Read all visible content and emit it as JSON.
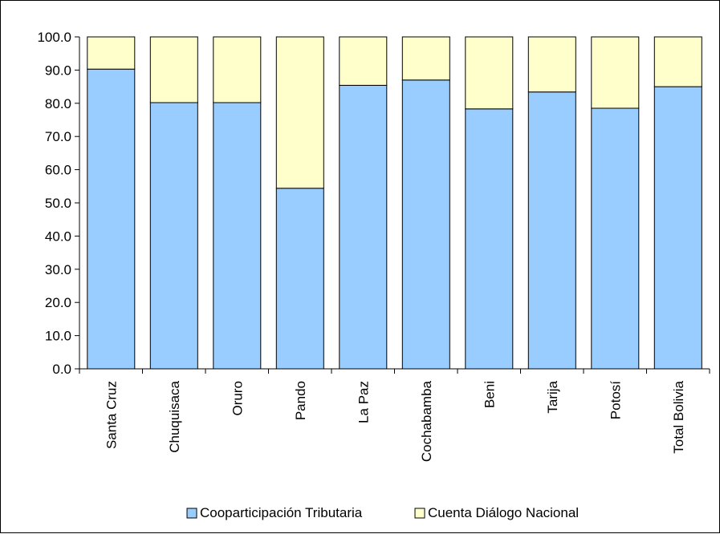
{
  "chart_data": {
    "type": "bar",
    "stacked": true,
    "title": "",
    "xlabel": "",
    "ylabel": "",
    "categories": [
      "Santa Cruz",
      "Chuquisaca",
      "Oruro",
      "Pando",
      "La Paz",
      "Cochabamba",
      "Beni",
      "Tarija",
      "Potosí",
      "Total Bolivia"
    ],
    "series": [
      {
        "name": "Cooparticipación Tributaria",
        "color": "#99ccff",
        "values": [
          90.3,
          80.2,
          80.2,
          54.4,
          85.4,
          87.0,
          78.3,
          83.4,
          78.5,
          85.0
        ]
      },
      {
        "name": "Cuenta Diálogo Nacional",
        "color": "#ffffcc",
        "values": [
          9.7,
          19.8,
          19.8,
          45.6,
          14.6,
          13.0,
          21.7,
          16.6,
          21.5,
          15.0
        ]
      }
    ],
    "ylim": [
      0,
      100
    ],
    "yticks": [
      "0.0",
      "10.0",
      "20.0",
      "30.0",
      "40.0",
      "50.0",
      "60.0",
      "70.0",
      "80.0",
      "90.0",
      "100.0"
    ],
    "grid": false,
    "legend": "bottom"
  }
}
